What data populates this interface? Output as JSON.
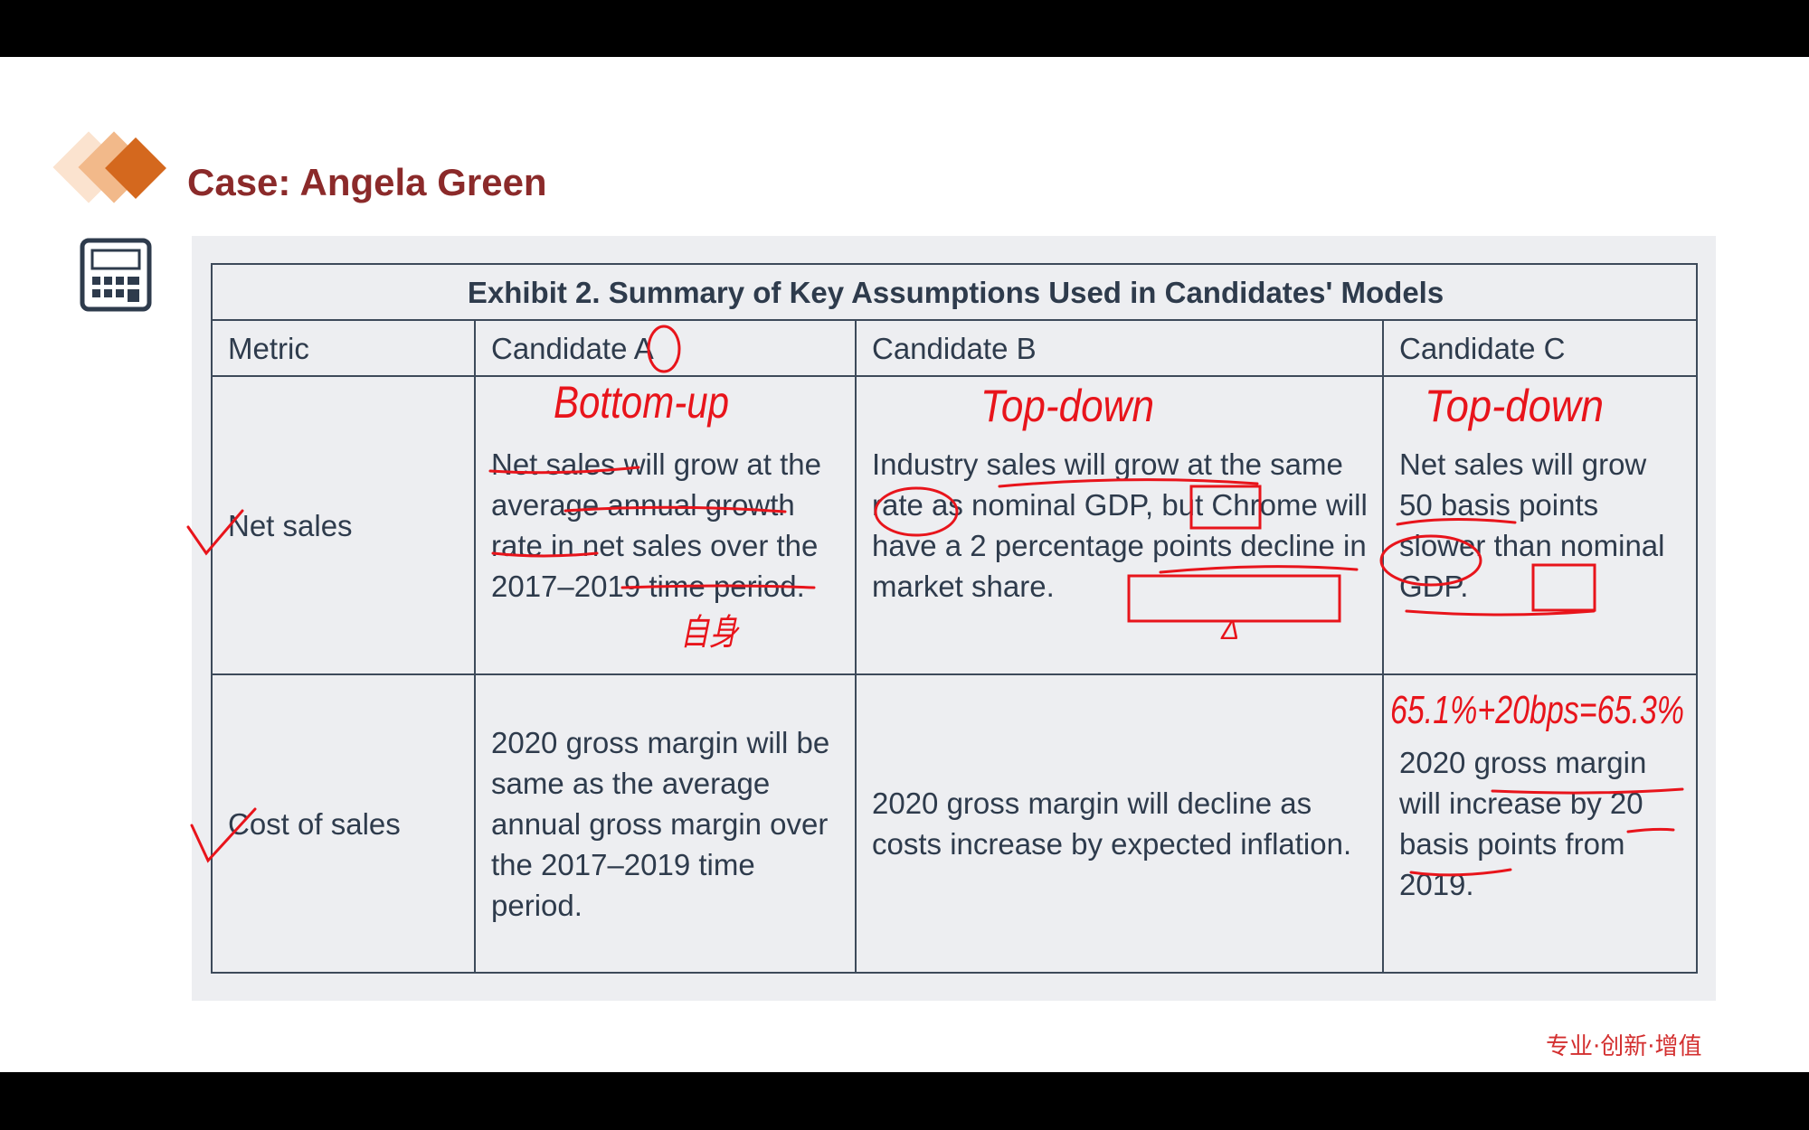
{
  "header": {
    "title": "Case: Angela Green"
  },
  "table": {
    "caption": "Exhibit 2. Summary of Key Assumptions Used in Candidates' Models",
    "columns": [
      "Metric",
      "Candidate A",
      "Candidate B",
      "Candidate C"
    ],
    "rows": [
      [
        "Net sales",
        "Net sales will grow at the average annual growth rate in net sales over the 2017–2019 time period.",
        "Industry sales will grow at the same rate as nominal GDP, but Chrome will have a 2 percentage points decline in market share.",
        "Net sales will grow 50 basis points slower than nominal GDP."
      ],
      [
        "Cost of sales",
        "2020 gross margin will be same as the average annual gross margin over the 2017–2019 time period.",
        "2020 gross margin will decline as costs increase by expected inflation.",
        "2020 gross margin will increase by 20 basis points from 2019."
      ]
    ]
  },
  "annotations": [
    "Bottom-up",
    "Top-down",
    "Top-down",
    "自身",
    "Δ",
    "65.1%+20bps=65.3%"
  ],
  "footer": "专业·创新·增值"
}
